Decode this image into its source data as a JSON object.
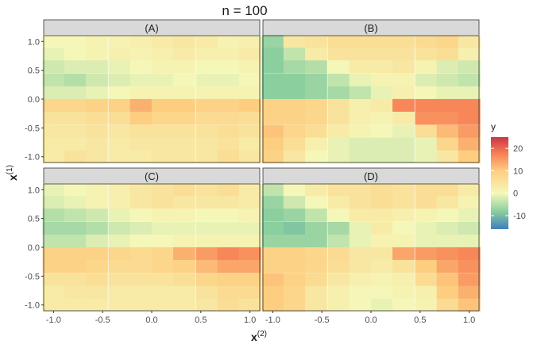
{
  "chart_data": {
    "type": "heatmap",
    "title": "n = 100",
    "xlabel": "x",
    "xlabel_sup": "(2)",
    "ylabel": "x",
    "ylabel_sup": "(1)",
    "legend_title": "y",
    "xlim": [
      -1.1,
      1.1
    ],
    "ylim": [
      -1.1,
      1.1
    ],
    "x_ticks": [
      -1.0,
      -0.5,
      0.0,
      0.5,
      1.0
    ],
    "x_tick_labels": [
      "-1.0",
      "-0.5",
      "0.0",
      "0.5",
      "1.0"
    ],
    "y_ticks": [
      1.0,
      0.5,
      0.0,
      -0.5,
      -1.0
    ],
    "y_tick_labels": [
      "1.0",
      "0.5",
      "0.0",
      "-0.5",
      "-1.0"
    ],
    "x_centers": [
      -1.0,
      -0.78,
      -0.56,
      -0.33,
      -0.11,
      0.11,
      0.33,
      0.56,
      0.78,
      1.0
    ],
    "y_centers": [
      1.0,
      0.78,
      0.56,
      0.33,
      0.11,
      -0.11,
      -0.33,
      -0.56,
      -0.78,
      -1.0
    ],
    "color_scale": {
      "limits": [
        -16,
        25
      ],
      "breaks": [
        20,
        10,
        0,
        -10
      ],
      "break_labels": [
        "20",
        "10",
        "0",
        "-10"
      ],
      "stops": [
        {
          "value": -16,
          "color": "#3f7fbd"
        },
        {
          "value": -8,
          "color": "#8ccf9f"
        },
        {
          "value": 0,
          "color": "#f5f7b8"
        },
        {
          "value": 10,
          "color": "#fdce80"
        },
        {
          "value": 18,
          "color": "#f67d53"
        },
        {
          "value": 25,
          "color": "#cb3544"
        }
      ]
    },
    "panels": [
      {
        "label": "(A)",
        "z": [
          [
            0,
            0,
            1,
            1,
            2,
            3,
            4,
            3,
            1,
            2
          ],
          [
            -1,
            0,
            1,
            2,
            1,
            2,
            3,
            2,
            2,
            3
          ],
          [
            -3,
            -2,
            -2,
            -1,
            0,
            1,
            1,
            0,
            0,
            1
          ],
          [
            -4,
            -5,
            -3,
            -2,
            -1,
            -1,
            0,
            -1,
            -1,
            0
          ],
          [
            -2,
            -2,
            -1,
            0,
            1,
            1,
            1,
            1,
            1,
            1
          ],
          [
            8,
            8,
            9,
            9,
            13,
            10,
            10,
            9,
            9,
            10
          ],
          [
            5,
            5,
            6,
            6,
            10,
            8,
            8,
            7,
            7,
            6
          ],
          [
            4,
            4,
            5,
            4,
            5,
            5,
            5,
            5,
            6,
            5
          ],
          [
            3,
            3,
            4,
            3,
            4,
            4,
            4,
            4,
            5,
            3
          ],
          [
            3,
            5,
            4,
            3,
            3,
            4,
            4,
            4,
            6,
            4
          ]
        ]
      },
      {
        "label": "(B)",
        "z": [
          [
            -7,
            4,
            5,
            6,
            6,
            6,
            6,
            7,
            8,
            4
          ],
          [
            -8,
            -4,
            3,
            5,
            5,
            5,
            5,
            5,
            6,
            2
          ],
          [
            -8,
            -6,
            -5,
            0,
            3,
            3,
            4,
            1,
            -2,
            -3
          ],
          [
            -8,
            -8,
            -7,
            -4,
            -1,
            1,
            1,
            -2,
            -3,
            -4
          ],
          [
            -8,
            -8,
            -7,
            -6,
            -4,
            -1,
            2,
            0,
            -1,
            -1
          ],
          [
            9,
            9,
            8,
            5,
            2,
            3,
            17,
            17,
            17,
            17
          ],
          [
            9,
            9,
            8,
            5,
            2,
            1,
            3,
            16,
            16,
            17
          ],
          [
            11,
            8,
            6,
            3,
            1,
            0,
            -1,
            6,
            12,
            15
          ],
          [
            10,
            6,
            2,
            -1,
            -2,
            -2,
            -2,
            -1,
            8,
            13
          ],
          [
            9,
            4,
            0,
            -1,
            -2,
            -2,
            -2,
            -1,
            4,
            10
          ]
        ]
      },
      {
        "label": "(C)",
        "z": [
          [
            -1,
            0,
            1,
            2,
            4,
            5,
            6,
            5,
            6,
            3
          ],
          [
            -2,
            -1,
            1,
            2,
            4,
            5,
            4,
            4,
            4,
            3
          ],
          [
            -5,
            -4,
            -3,
            -1,
            0,
            1,
            1,
            0,
            0,
            1
          ],
          [
            -6,
            -6,
            -5,
            -3,
            -2,
            -1,
            -1,
            -1,
            -1,
            -1
          ],
          [
            -4,
            -4,
            -2,
            -1,
            0,
            0,
            1,
            1,
            1,
            1
          ],
          [
            9,
            9,
            9,
            8,
            7,
            8,
            13,
            15,
            17,
            16
          ],
          [
            9,
            9,
            8,
            7,
            7,
            8,
            9,
            12,
            14,
            14
          ],
          [
            5,
            5,
            6,
            5,
            5,
            5,
            6,
            8,
            9,
            9
          ],
          [
            3,
            4,
            4,
            3,
            3,
            3,
            3,
            5,
            7,
            7
          ],
          [
            3,
            3,
            3,
            3,
            3,
            3,
            3,
            4,
            6,
            5
          ]
        ]
      },
      {
        "label": "(D)",
        "z": [
          [
            -4,
            0,
            3,
            5,
            5,
            6,
            5,
            6,
            6,
            3
          ],
          [
            -7,
            -3,
            0,
            3,
            5,
            6,
            5,
            6,
            4,
            1
          ],
          [
            -8,
            -7,
            -4,
            0,
            3,
            3,
            2,
            1,
            0,
            -1
          ],
          [
            -8,
            -9,
            -7,
            -6,
            -1,
            3,
            0,
            -1,
            -2,
            -3
          ],
          [
            -7,
            -7,
            -7,
            -4,
            -1,
            1,
            1,
            -1,
            -1,
            -1
          ],
          [
            9,
            9,
            8,
            7,
            4,
            4,
            14,
            15,
            16,
            17
          ],
          [
            9,
            9,
            8,
            6,
            4,
            3,
            5,
            10,
            14,
            16
          ],
          [
            11,
            9,
            7,
            4,
            2,
            1,
            2,
            7,
            11,
            15
          ],
          [
            10,
            8,
            4,
            2,
            0,
            0,
            1,
            2,
            10,
            13
          ],
          [
            10,
            8,
            4,
            2,
            0,
            -1,
            0,
            1,
            7,
            11
          ]
        ]
      }
    ]
  }
}
